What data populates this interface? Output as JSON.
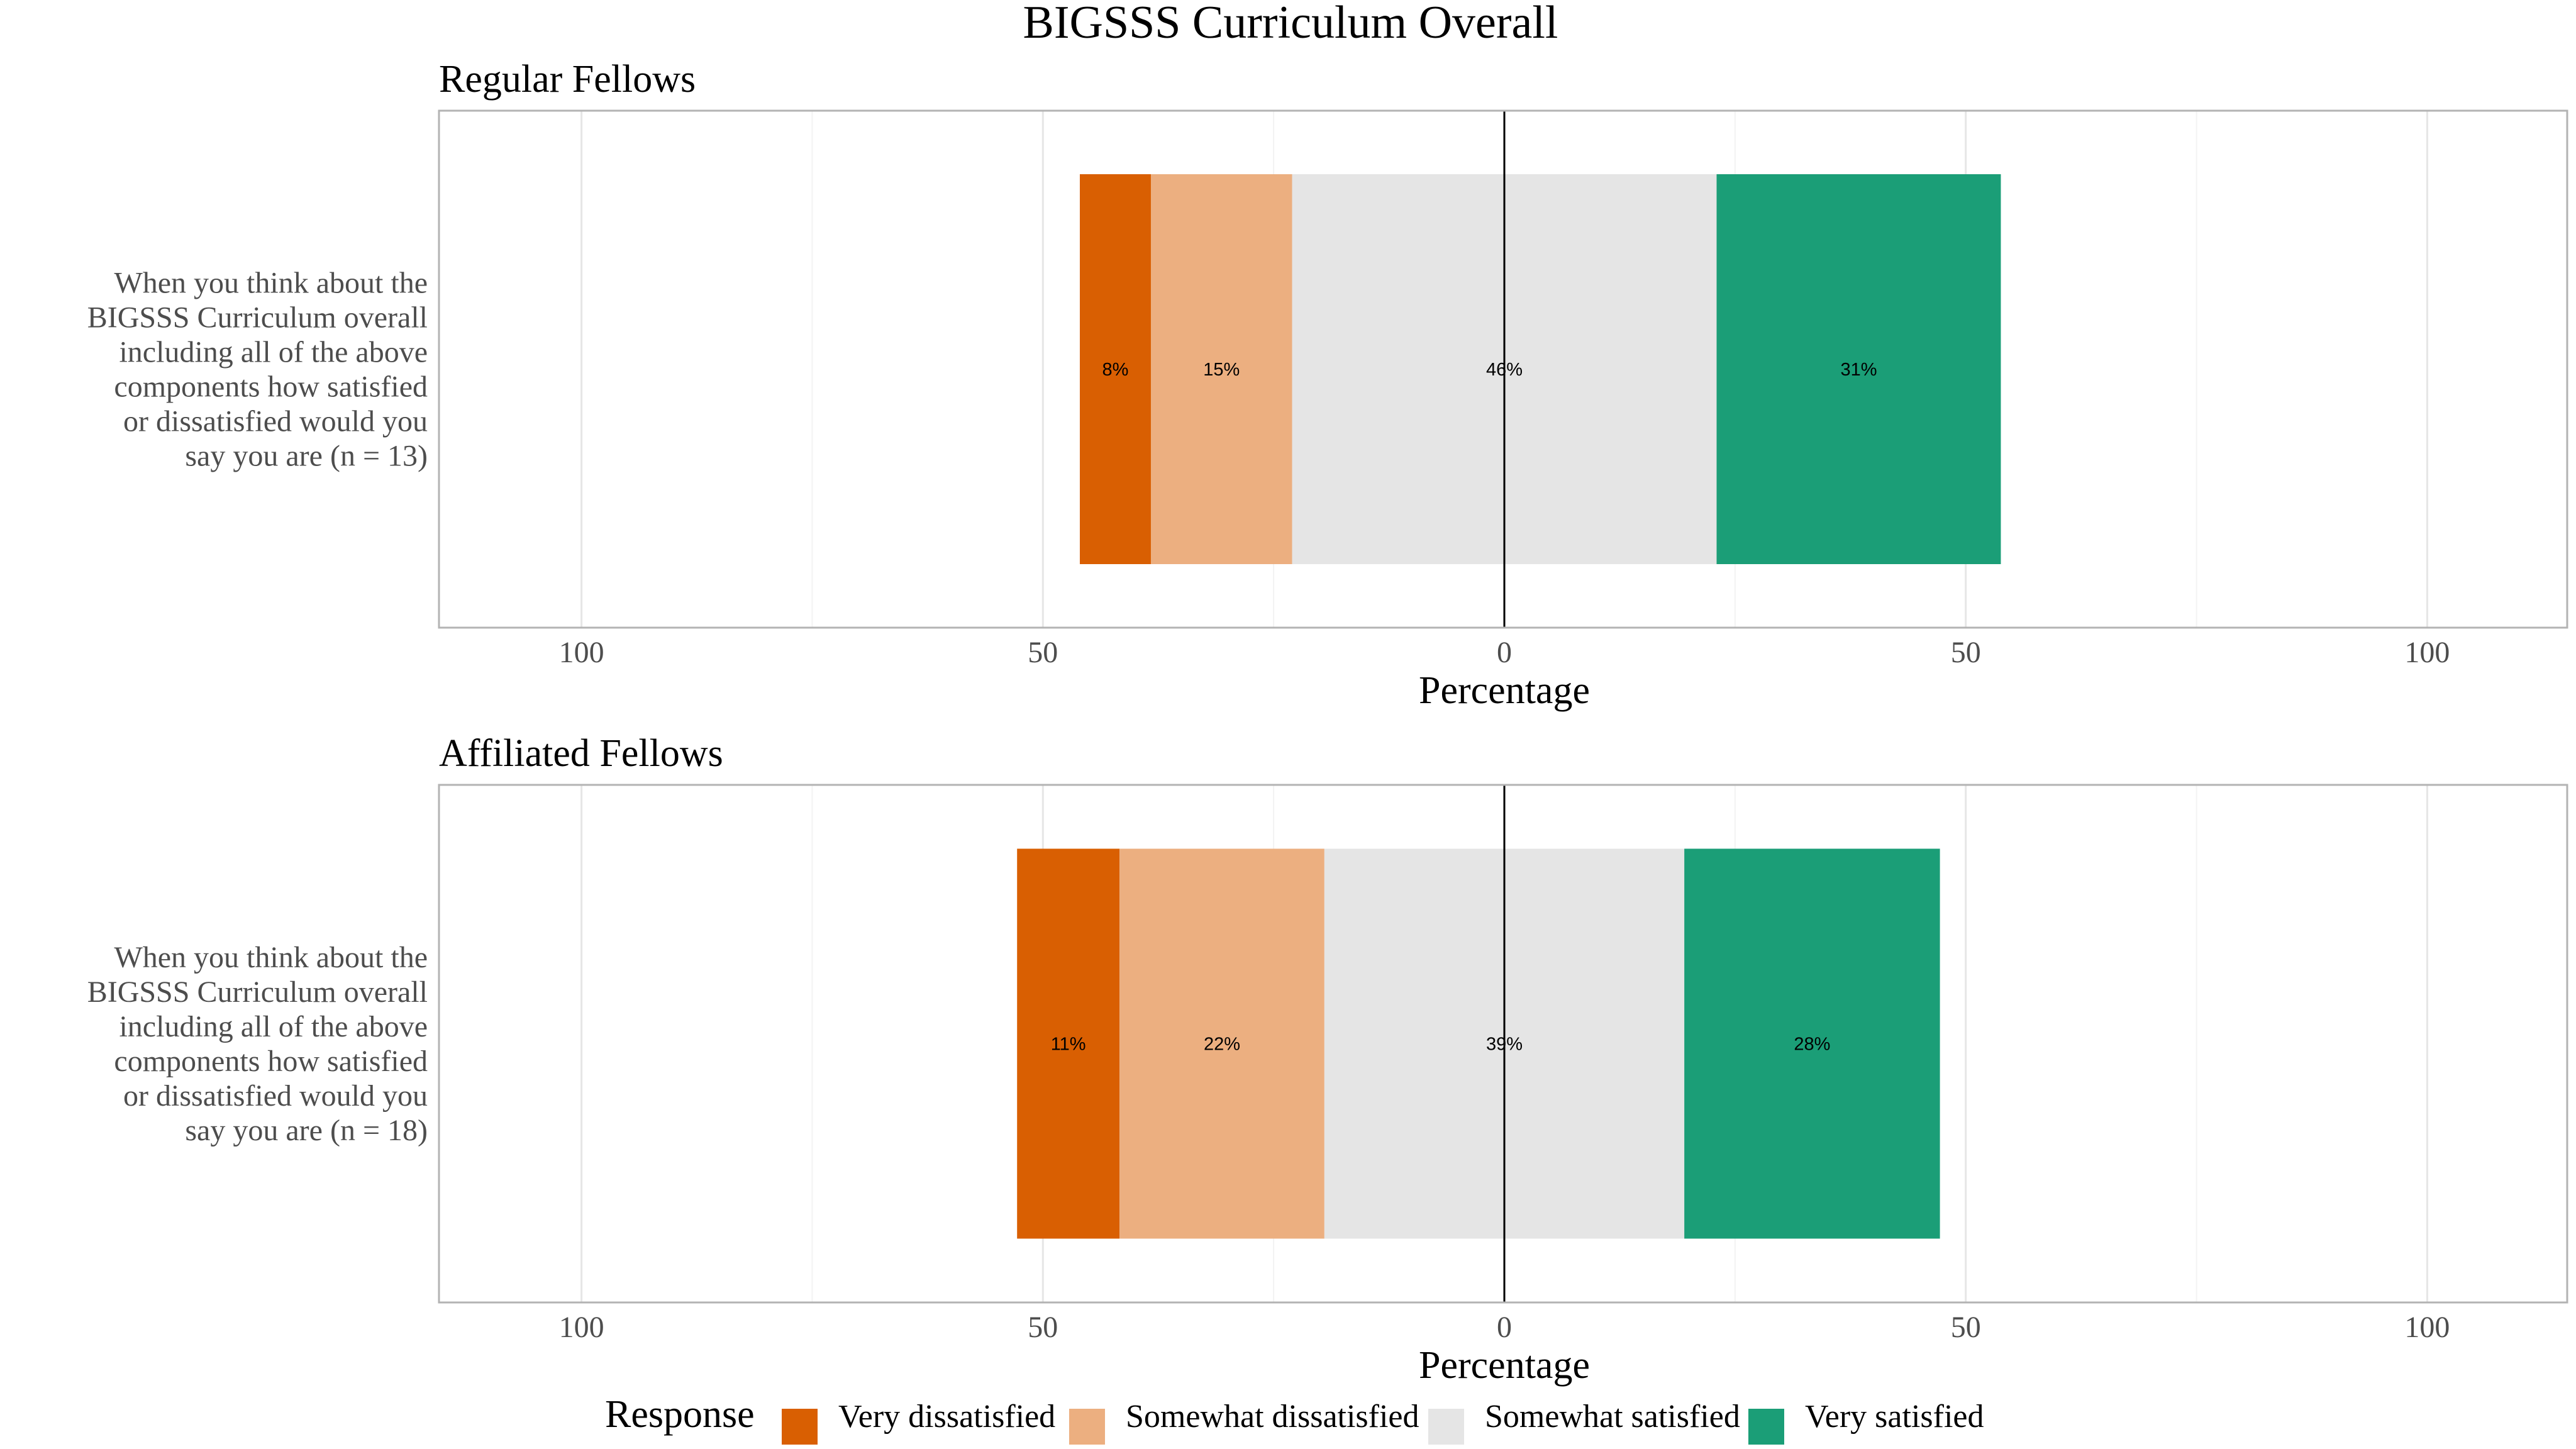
{
  "chart_data": {
    "type": "bar",
    "stacked": true,
    "orientation": "horizontal",
    "diverging": true,
    "title": "BIGSSS Curriculum Overall",
    "xlabel": "Percentage",
    "xlim": [
      -115,
      115
    ],
    "xticks": [
      -100,
      -50,
      0,
      50,
      100
    ],
    "xtick_labels": [
      "100",
      "50",
      "0",
      "50",
      "100"
    ],
    "grid": true,
    "legend": {
      "title": "Response",
      "position": "bottom",
      "entries": [
        "Very dissatisfied",
        "Somewhat dissatisfied",
        "Somewhat satisfied",
        "Very satisfied"
      ]
    },
    "colors": {
      "Very dissatisfied": "#D95F02",
      "Somewhat dissatisfied": "#ECAF80",
      "Somewhat satisfied": "#E5E5E5",
      "Very satisfied": "#1B9E77"
    },
    "panels": [
      {
        "subtitle": "Regular Fellows",
        "category": "When you think about the BIGSSS Curriculum overall including all of the above components how satisfied or dissatisfied would you say you are (n = 13)",
        "segments": [
          {
            "response": "Very dissatisfied",
            "start": -46,
            "end": -38.3,
            "label": "8%"
          },
          {
            "response": "Somewhat dissatisfied",
            "start": -38.3,
            "end": -23,
            "label": "15%"
          },
          {
            "response": "Somewhat satisfied",
            "start": -23,
            "end": 23,
            "label": "46%"
          },
          {
            "response": "Very satisfied",
            "start": 23,
            "end": 53.8,
            "label": "31%"
          }
        ]
      },
      {
        "subtitle": "Affiliated Fellows",
        "category": "When you think about the BIGSSS Curriculum overall including all of the above components how satisfied or dissatisfied would you say you are (n = 18)",
        "segments": [
          {
            "response": "Very dissatisfied",
            "start": -52.8,
            "end": -41.7,
            "label": "11%"
          },
          {
            "response": "Somewhat dissatisfied",
            "start": -41.7,
            "end": -19.5,
            "label": "22%"
          },
          {
            "response": "Somewhat satisfied",
            "start": -19.5,
            "end": 19.5,
            "label": "39%"
          },
          {
            "response": "Very satisfied",
            "start": 19.5,
            "end": 47.2,
            "label": "28%"
          }
        ]
      }
    ]
  }
}
